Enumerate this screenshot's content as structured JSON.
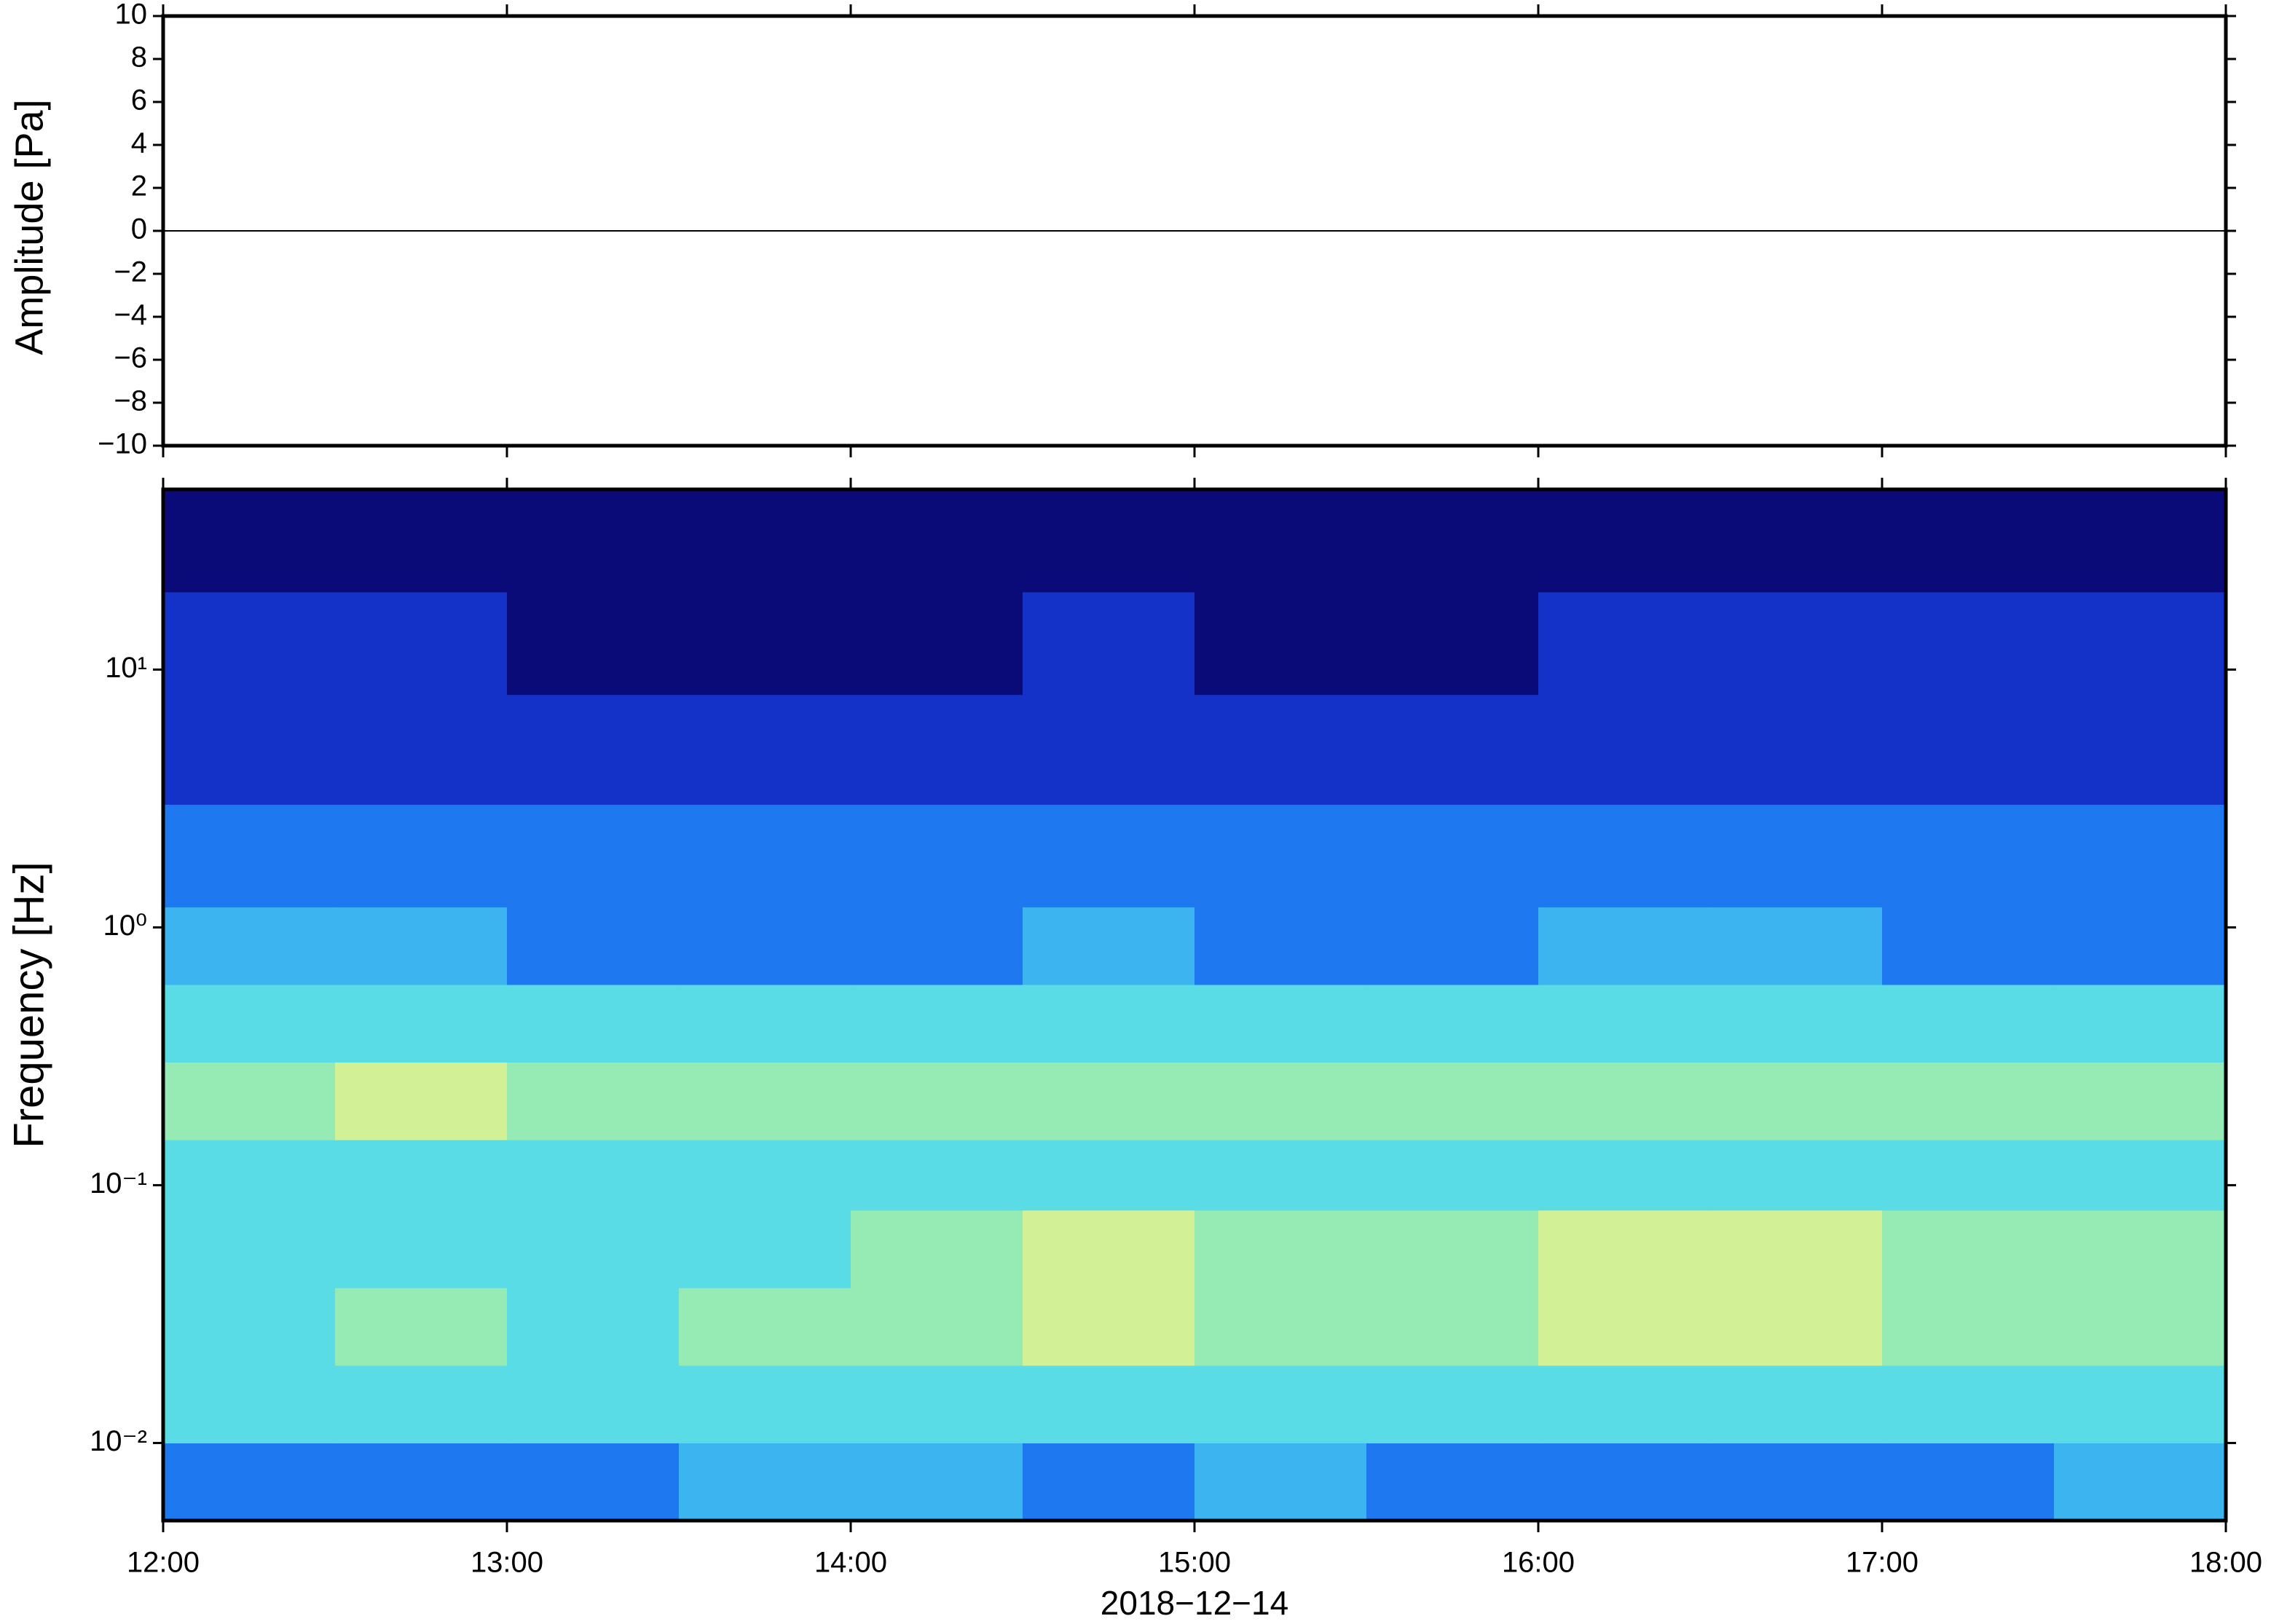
{
  "chart_data": [
    {
      "type": "line",
      "ylabel": "Amplitude [Pa]",
      "x": [
        12,
        13,
        14,
        15,
        16,
        17,
        18
      ],
      "values": [
        0,
        0,
        0,
        0,
        0,
        0,
        0
      ],
      "color": "#000000",
      "xlim": [
        12,
        18
      ],
      "xticks": [
        12,
        13,
        14,
        15,
        16,
        17,
        18
      ],
      "ylim": [
        -10,
        10
      ],
      "yticks": [
        {
          "value": -10,
          "label": "−10"
        },
        {
          "value": -8,
          "label": "−8"
        },
        {
          "value": -6,
          "label": "−6"
        },
        {
          "value": -4,
          "label": "−4"
        },
        {
          "value": -2,
          "label": "−2"
        },
        0,
        2,
        4,
        6,
        8,
        10
      ]
    },
    {
      "type": "heatmap",
      "ylabel": "Frequency [Hz]",
      "xlabel": "2018−12−14",
      "xlim": [
        12,
        18
      ],
      "xticks": [
        {
          "value": 12,
          "label": "12:00"
        },
        {
          "value": 13,
          "label": "13:00"
        },
        {
          "value": 14,
          "label": "14:00"
        },
        {
          "value": 15,
          "label": "15:00"
        },
        {
          "value": 16,
          "label": "16:00"
        },
        {
          "value": 17,
          "label": "17:00"
        },
        {
          "value": 18,
          "label": "18:00"
        }
      ],
      "ylim": [
        0.005,
        50
      ],
      "yscale": "log",
      "yticks": [
        {
          "value": 0.01,
          "label": "10⁻²"
        },
        {
          "value": 0.1,
          "label": "10⁻¹"
        },
        {
          "value": 1,
          "label": "10⁰"
        },
        {
          "value": 10,
          "label": "10¹"
        }
      ],
      "xbins": [
        12,
        12.5,
        13,
        13.5,
        14,
        14.5,
        15,
        15.5,
        16,
        16.5,
        17,
        17.5,
        18
      ],
      "ybins": [
        0.005,
        0.01,
        0.02,
        0.04,
        0.08,
        0.15,
        0.3,
        0.6,
        1.2,
        3,
        8,
        20,
        50
      ],
      "colors": [
        "#0a0a78",
        "#1432c8",
        "#1e78f0",
        "#3cb4f0",
        "#5adce6",
        "#96ebb4",
        "#d2f096",
        "#f5d278",
        "#f5a050"
      ],
      "z": [
        [
          0.3,
          0.3,
          0.25,
          0.35,
          0.35,
          0.3,
          0.35,
          0.3,
          0.3,
          0.25,
          0.3,
          0.35
        ],
        [
          0.45,
          0.5,
          0.45,
          0.5,
          0.5,
          0.55,
          0.5,
          0.55,
          0.45,
          0.5,
          0.45,
          0.45
        ],
        [
          0.55,
          0.6,
          0.55,
          0.6,
          0.65,
          0.75,
          0.65,
          0.6,
          0.75,
          0.7,
          0.65,
          0.6
        ],
        [
          0.5,
          0.55,
          0.5,
          0.55,
          0.6,
          0.7,
          0.6,
          0.6,
          0.7,
          0.7,
          0.65,
          0.6
        ],
        [
          0.45,
          0.45,
          0.45,
          0.45,
          0.5,
          0.5,
          0.5,
          0.5,
          0.55,
          0.5,
          0.45,
          0.45
        ],
        [
          0.65,
          0.7,
          0.65,
          0.65,
          0.6,
          0.6,
          0.6,
          0.6,
          0.6,
          0.6,
          0.6,
          0.6
        ],
        [
          0.5,
          0.5,
          0.45,
          0.45,
          0.45,
          0.45,
          0.45,
          0.45,
          0.45,
          0.45,
          0.45,
          0.45
        ],
        [
          0.35,
          0.35,
          0.3,
          0.3,
          0.3,
          0.35,
          0.3,
          0.3,
          0.35,
          0.35,
          0.3,
          0.3
        ],
        [
          0.25,
          0.25,
          0.2,
          0.2,
          0.2,
          0.25,
          0.2,
          0.2,
          0.25,
          0.25,
          0.2,
          0.2
        ],
        [
          0.18,
          0.15,
          0.12,
          0.12,
          0.12,
          0.18,
          0.12,
          0.12,
          0.18,
          0.18,
          0.15,
          0.15
        ],
        [
          0.1,
          0.08,
          0.06,
          0.06,
          0.05,
          0.08,
          0.05,
          0.05,
          0.08,
          0.1,
          0.08,
          0.08
        ],
        [
          0.02,
          0.02,
          0.02,
          0.02,
          0.02,
          0.02,
          0.02,
          0.02,
          0.02,
          0.02,
          0.02,
          0.02
        ]
      ]
    }
  ]
}
